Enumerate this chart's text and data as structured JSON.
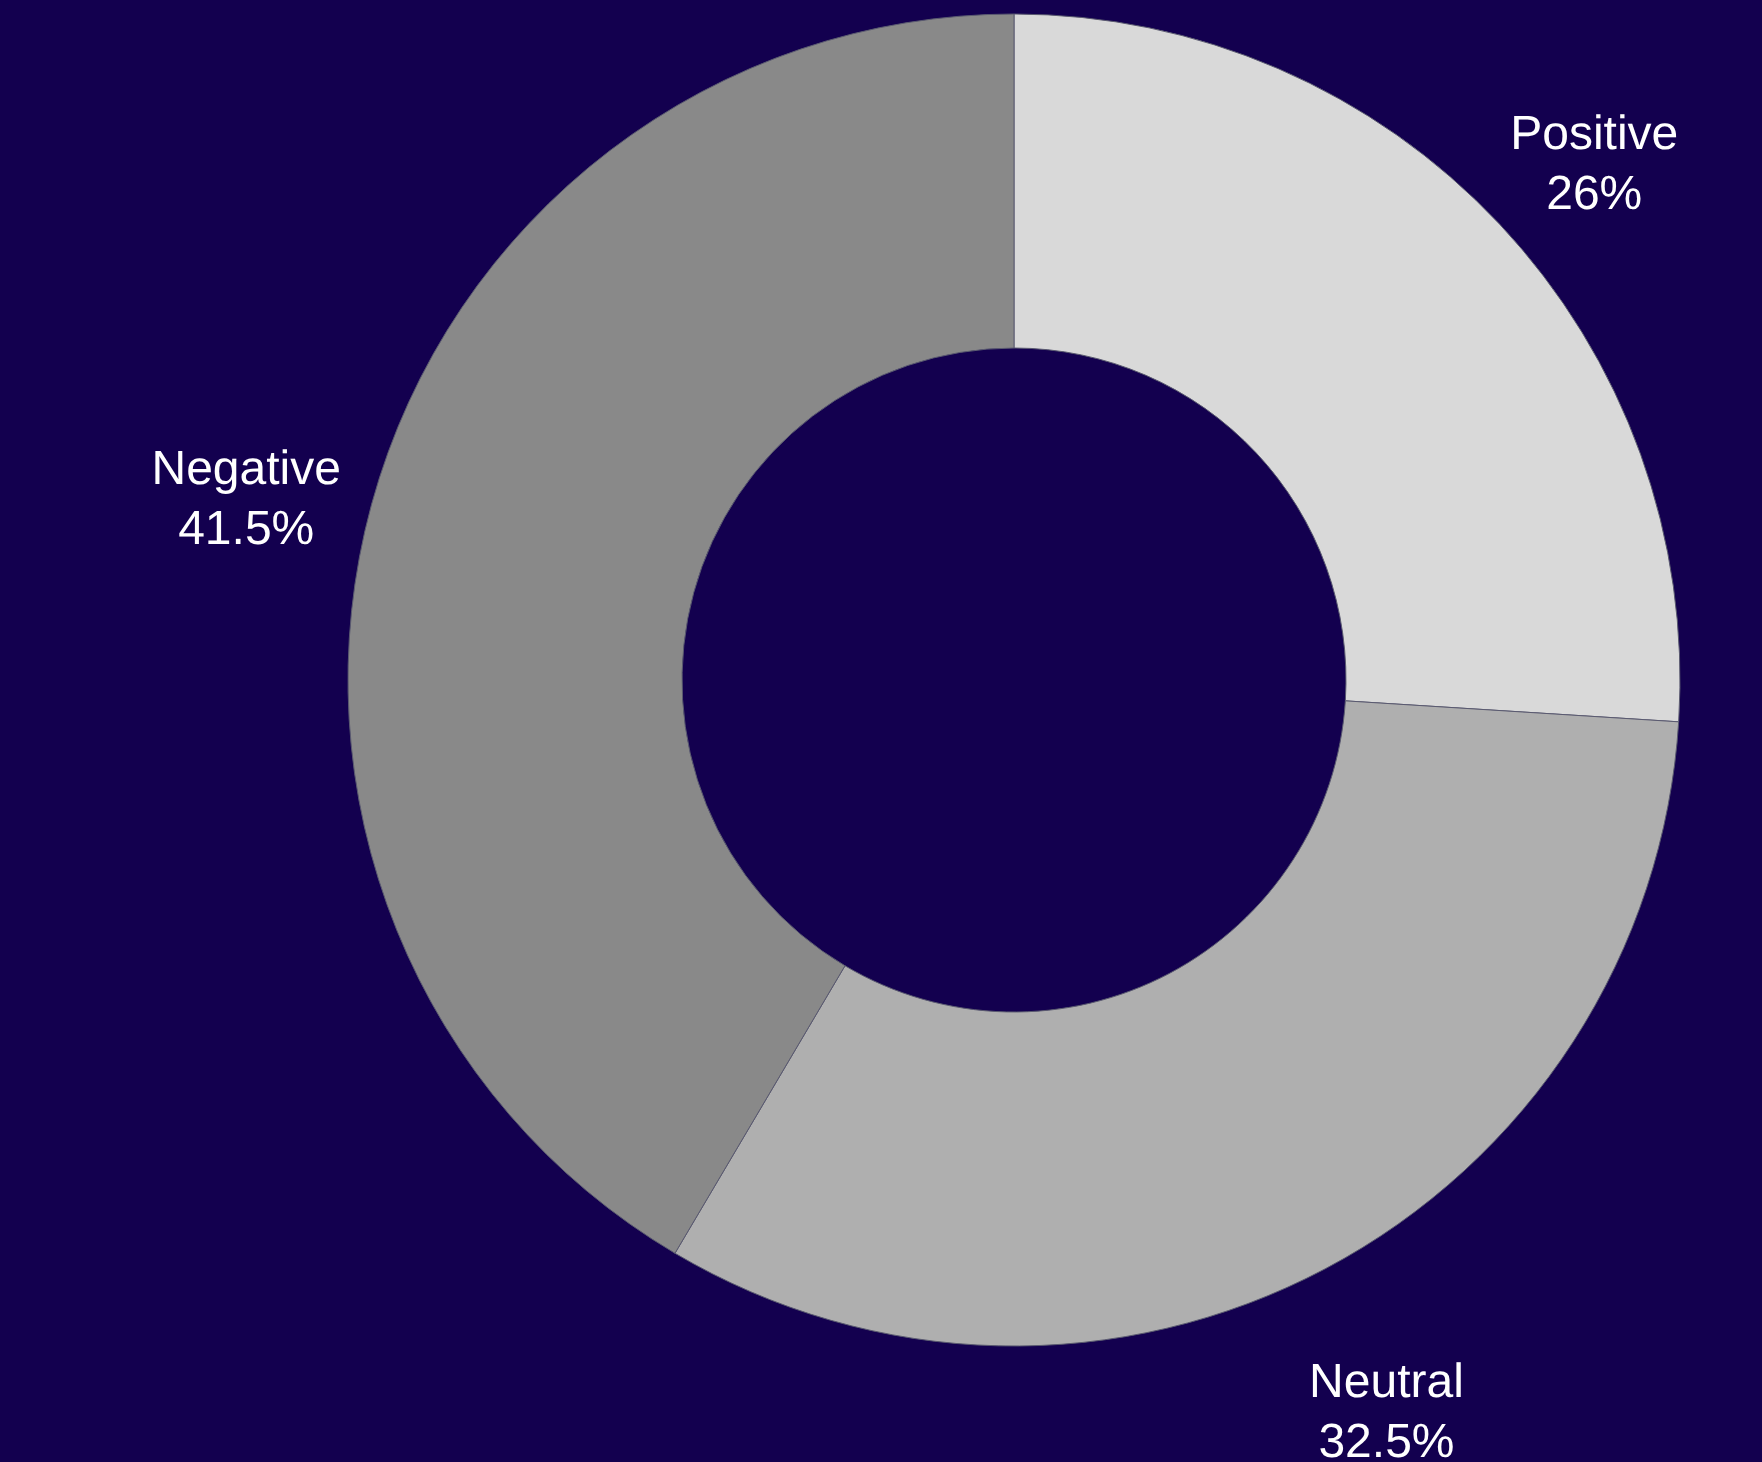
{
  "chart_data": {
    "type": "donut",
    "categories": [
      "Positive",
      "Neutral",
      "Negative"
    ],
    "values": [
      26,
      32.5,
      41.5
    ],
    "value_labels": [
      "26%",
      "32.5%",
      "41.5%"
    ],
    "colors": [
      "#d9d9d9",
      "#afafaf",
      "#898989"
    ]
  }
}
